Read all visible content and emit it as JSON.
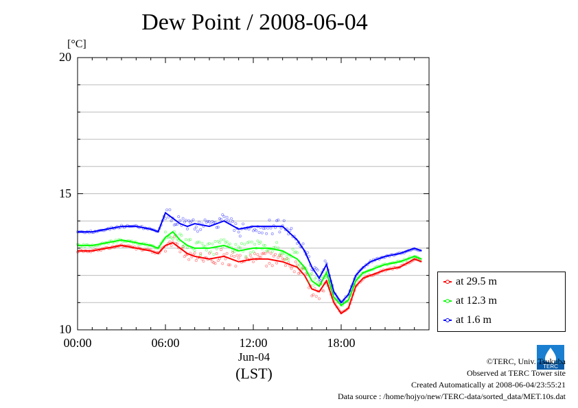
{
  "chart_data": {
    "type": "line",
    "title": "Dew Point / 2008-06-04",
    "ylabel": "[°C]",
    "xlabel": "(LST)",
    "date_label": "Jun-04",
    "ylim": [
      10,
      20
    ],
    "xlim": [
      0,
      24
    ],
    "y_ticks": [
      "20",
      "15",
      "10"
    ],
    "x_ticks": [
      "00:00",
      "06:00",
      "12:00",
      "18:00"
    ],
    "grid": true,
    "legend_position": "right-bottom",
    "x": [
      0,
      1,
      2,
      3,
      4,
      5,
      5.5,
      6,
      6.5,
      7,
      7.5,
      8,
      9,
      10,
      11,
      12,
      13,
      14,
      15,
      15.5,
      16,
      16.5,
      17,
      17.5,
      18,
      18.5,
      19,
      19.5,
      20,
      21,
      22,
      23,
      23.5
    ],
    "series": [
      {
        "name": "at 29.5 m",
        "color": "#ff0000",
        "values": [
          12.9,
          12.9,
          13.0,
          13.1,
          13.0,
          12.9,
          12.8,
          13.1,
          13.2,
          13.0,
          12.8,
          12.7,
          12.6,
          12.7,
          12.5,
          12.6,
          12.6,
          12.5,
          12.3,
          12.0,
          11.5,
          11.4,
          11.8,
          11.0,
          10.6,
          10.8,
          11.6,
          11.9,
          12.0,
          12.2,
          12.3,
          12.6,
          12.5
        ]
      },
      {
        "name": "at 12.3 m",
        "color": "#00ff00",
        "values": [
          13.1,
          13.1,
          13.2,
          13.3,
          13.2,
          13.1,
          13.0,
          13.4,
          13.6,
          13.3,
          13.1,
          13.0,
          13.0,
          13.1,
          12.9,
          13.0,
          13.0,
          12.9,
          12.6,
          12.3,
          11.8,
          11.6,
          12.1,
          11.2,
          10.9,
          11.1,
          11.8,
          12.1,
          12.2,
          12.4,
          12.5,
          12.7,
          12.6
        ]
      },
      {
        "name": "at 1.6 m",
        "color": "#0000ff",
        "values": [
          13.6,
          13.6,
          13.7,
          13.8,
          13.8,
          13.7,
          13.6,
          14.3,
          14.1,
          13.9,
          13.8,
          13.9,
          13.8,
          14.0,
          13.7,
          13.8,
          13.8,
          13.8,
          13.3,
          12.9,
          12.3,
          11.9,
          12.4,
          11.4,
          11.0,
          11.3,
          12.0,
          12.3,
          12.5,
          12.7,
          12.8,
          13.0,
          12.9
        ]
      }
    ]
  },
  "credits": {
    "copyright": "©TERC, Univ. Tsukuba",
    "observed": "Observed at TERC Tower site",
    "created": "Created Automatically at 2008-06-04/23:55:21",
    "source": "Data source : /home/hojyo/new/TERC-data/sorted_data/MET.10s.dat"
  },
  "logo": {
    "text": "TERC",
    "icon": "terc-logo-icon"
  }
}
